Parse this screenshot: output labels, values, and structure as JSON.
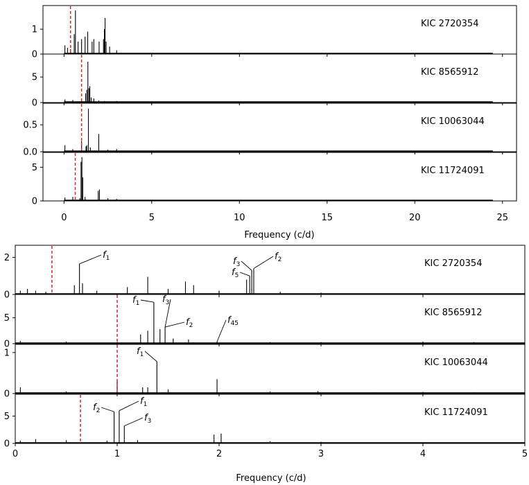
{
  "chart_data": [
    {
      "type": "line",
      "title": "",
      "xlabel": "Frequency (c/d)",
      "xlim": [
        -1.2,
        25.8
      ],
      "xticks": [
        0,
        5,
        10,
        15,
        20,
        25
      ],
      "xtick_labels": [
        "0",
        "5",
        "10",
        "15",
        "20",
        "25"
      ],
      "panels": [
        {
          "star": "KIC 2720354",
          "ylim": [
            0,
            1.95
          ],
          "yticks": [
            0,
            1
          ],
          "ytick_labels": [
            "0",
            "1"
          ],
          "vline": 0.37,
          "series": [
            {
              "x": [
                0.05,
                0.2,
                0.37,
                0.58,
                0.65,
                0.8,
                1.0,
                1.2,
                1.35,
                1.6,
                1.7,
                2.0,
                2.25,
                2.3,
                2.34,
                2.4,
                2.6,
                3.0
              ],
              "y": [
                0.35,
                0.25,
                0.2,
                0.8,
                1.75,
                0.5,
                0.6,
                0.7,
                0.9,
                0.5,
                0.6,
                0.5,
                0.6,
                1.0,
                1.45,
                0.5,
                0.3,
                0.15
              ]
            }
          ]
        },
        {
          "star": "KIC 8565912",
          "ylim": [
            0,
            9.5
          ],
          "yticks": [
            0,
            5
          ],
          "ytick_labels": [
            "0",
            "5"
          ],
          "vline": 1.0,
          "series": [
            {
              "x": [
                0.05,
                0.5,
                1.0,
                1.23,
                1.3,
                1.36,
                1.42,
                1.47,
                1.55,
                1.7,
                1.98,
                2.3,
                3.0
              ],
              "y": [
                0.6,
                0.5,
                0.3,
                1.8,
                2.5,
                8.0,
                2.8,
                3.2,
                1.0,
                0.8,
                0.4,
                0.3,
                0.3
              ]
            }
          ]
        },
        {
          "star": "KIC 10063044",
          "ylim": [
            0,
            0.9
          ],
          "yticks": [
            0,
            0.5
          ],
          "ytick_labels": [
            "0.0",
            "0.5"
          ],
          "vline": 1.0,
          "series": [
            {
              "x": [
                0.05,
                0.5,
                1.0,
                1.25,
                1.3,
                1.39,
                1.5,
                1.98,
                2.5,
                3.0
              ],
              "y": [
                0.12,
                0.05,
                0.2,
                0.1,
                0.12,
                0.8,
                0.08,
                0.33,
                0.04,
                0.05
              ]
            }
          ]
        },
        {
          "star": "KIC 11724091",
          "ylim": [
            0,
            7.2
          ],
          "yticks": [
            0,
            5
          ],
          "ytick_labels": [
            "0",
            "5"
          ],
          "vline": 0.64,
          "series": [
            {
              "x": [
                0.05,
                0.5,
                0.9,
                0.97,
                1.02,
                1.07,
                1.2,
                1.95,
                2.02,
                2.5,
                3.0
              ],
              "y": [
                0.5,
                0.6,
                0.4,
                5.8,
                6.5,
                3.5,
                0.6,
                1.5,
                1.7,
                0.4,
                0.3
              ]
            }
          ]
        }
      ]
    },
    {
      "type": "line",
      "title": "",
      "xlabel": "Frequency (c/d)",
      "xlim": [
        0,
        5
      ],
      "xticks": [
        0,
        1,
        2,
        3,
        4,
        5
      ],
      "xtick_labels": [
        "0",
        "1",
        "2",
        "3",
        "4",
        "5"
      ],
      "panels": [
        {
          "star": "KIC 2720354",
          "ylim": [
            0,
            2.65
          ],
          "yticks": [
            0,
            2
          ],
          "ytick_labels": [
            "0",
            "2"
          ],
          "vline": 0.36,
          "series": [
            {
              "x": [
                0.05,
                0.12,
                0.2,
                0.3,
                0.58,
                0.63,
                0.66,
                0.8,
                1.1,
                1.3,
                1.5,
                1.67,
                1.75,
                2.0,
                2.27,
                2.3,
                2.32,
                2.34,
                2.6,
                3.0,
                4.0,
                5.0
              ],
              "y": [
                0.2,
                0.3,
                0.2,
                0.15,
                0.5,
                1.65,
                0.6,
                0.2,
                0.4,
                0.95,
                0.3,
                0.7,
                0.5,
                0.2,
                0.8,
                1.0,
                1.3,
                1.4,
                0.15,
                0.1,
                0.05,
                0.05
              ]
            }
          ]
        },
        {
          "star": "KIC 8565912",
          "ylim": [
            0,
            9.5
          ],
          "yticks": [
            0,
            5
          ],
          "ytick_labels": [
            "0",
            "5"
          ],
          "vline": 1.0,
          "series": [
            {
              "x": [
                0.05,
                0.5,
                1.0,
                1.23,
                1.3,
                1.36,
                1.42,
                1.47,
                1.55,
                1.7,
                1.98,
                2.5,
                3.0,
                4.0,
                4.5,
                5.0
              ],
              "y": [
                0.5,
                0.4,
                0.3,
                1.8,
                2.5,
                8.0,
                2.8,
                3.2,
                1.0,
                0.8,
                0.4,
                0.3,
                0.3,
                0.4,
                0.3,
                0.2
              ]
            }
          ]
        },
        {
          "star": "KIC 10063044",
          "ylim": [
            0,
            1.2
          ],
          "yticks": [
            0,
            1
          ],
          "ytick_labels": [
            "0",
            "1"
          ],
          "vline": 1.0,
          "series": [
            {
              "x": [
                0.05,
                0.5,
                1.0,
                1.25,
                1.3,
                1.39,
                1.5,
                1.98,
                2.5,
                2.97,
                3.5,
                4.0,
                4.5,
                5.0
              ],
              "y": [
                0.15,
                0.05,
                0.3,
                0.15,
                0.15,
                0.78,
                0.1,
                0.35,
                0.05,
                0.06,
                0.03,
                0.04,
                0.03,
                0.03
              ]
            }
          ]
        },
        {
          "star": "KIC 11724091",
          "ylim": [
            0,
            9.0
          ],
          "yticks": [
            0,
            5
          ],
          "ytick_labels": [
            "0",
            "5"
          ],
          "vline": 0.64,
          "series": [
            {
              "x": [
                0.05,
                0.2,
                0.5,
                0.9,
                0.97,
                1.02,
                1.07,
                1.2,
                1.95,
                2.02,
                2.5,
                3.0,
                4.0,
                5.0
              ],
              "y": [
                0.5,
                0.8,
                0.6,
                0.5,
                5.8,
                6.0,
                3.2,
                0.6,
                1.6,
                1.8,
                0.4,
                0.3,
                0.2,
                0.1
              ]
            }
          ]
        }
      ]
    }
  ],
  "annotations": [
    {
      "panel": "b0",
      "label": "f",
      "sub": "1",
      "peak": 0.63
    },
    {
      "panel": "b0",
      "label": "f",
      "sub": "2",
      "peak": 2.34
    },
    {
      "panel": "b0",
      "label": "f",
      "sub": "3",
      "peak": 2.32
    },
    {
      "panel": "b0",
      "label": "f",
      "sub": "5",
      "peak": 2.3
    },
    {
      "panel": "b1",
      "label": "f",
      "sub": "1",
      "peak": 1.36
    },
    {
      "panel": "b1",
      "label": "f",
      "sub": "3",
      "peak": 1.47
    },
    {
      "panel": "b1",
      "label": "f",
      "sub": "2",
      "peak": 1.47
    },
    {
      "panel": "b1",
      "label": "f",
      "sub": "45",
      "peak": 1.98
    },
    {
      "panel": "b2",
      "label": "f",
      "sub": "1",
      "peak": 1.39
    },
    {
      "panel": "b3",
      "label": "f",
      "sub": "2",
      "peak": 0.97
    },
    {
      "panel": "b3",
      "label": "f",
      "sub": "1",
      "peak": 1.02
    },
    {
      "panel": "b3",
      "label": "f",
      "sub": "3",
      "peak": 1.07
    }
  ],
  "colors": {
    "spectrum": "#000000",
    "vline": "#d62728"
  }
}
